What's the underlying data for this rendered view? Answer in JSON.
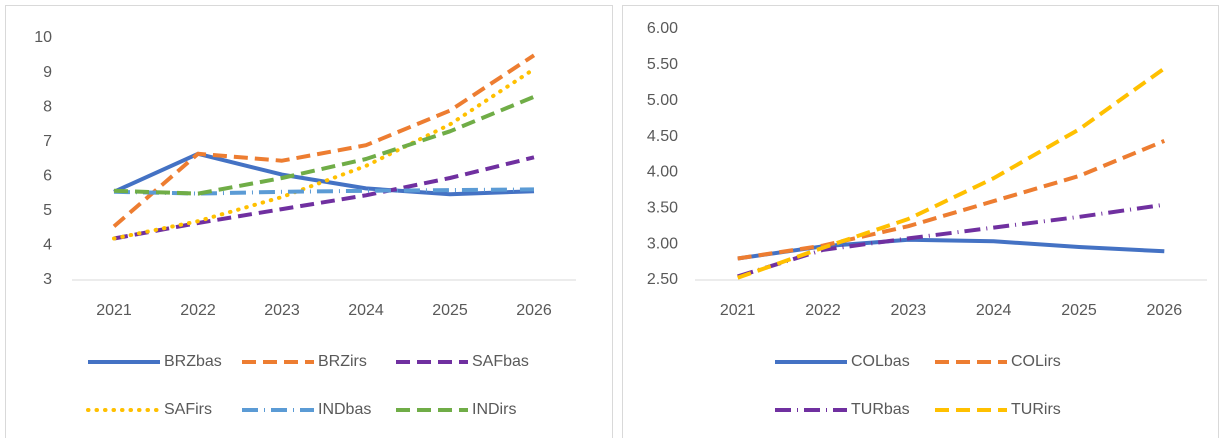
{
  "chart_data": [
    {
      "type": "line",
      "categories": [
        "2021",
        "2022",
        "2023",
        "2024",
        "2025",
        "2026"
      ],
      "ylim": [
        3,
        10
      ],
      "yticks": [
        3,
        4,
        5,
        6,
        7,
        8,
        9,
        10
      ],
      "legend": "bottom",
      "series": [
        {
          "name": "BRZbas",
          "color": "#4472c4",
          "dash": "solid",
          "values": [
            5.55,
            6.65,
            6.05,
            5.65,
            5.48,
            5.57
          ]
        },
        {
          "name": "BRZirs",
          "color": "#ed7d31",
          "dash": "dash",
          "values": [
            4.55,
            6.65,
            6.45,
            6.9,
            7.9,
            9.5
          ]
        },
        {
          "name": "SAFbas",
          "color": "#7030a0",
          "dash": "dash",
          "values": [
            4.2,
            4.65,
            5.05,
            5.45,
            5.95,
            6.55
          ]
        },
        {
          "name": "SAFirs",
          "color": "#ffc000",
          "dash": "dot",
          "values": [
            4.2,
            4.7,
            5.4,
            6.3,
            7.5,
            9.1
          ]
        },
        {
          "name": "INDbas",
          "color": "#5b9bd5",
          "dash": "dashdot",
          "values": [
            5.55,
            5.5,
            5.55,
            5.58,
            5.6,
            5.62
          ]
        },
        {
          "name": "INDirs",
          "color": "#70ad47",
          "dash": "dash",
          "values": [
            5.58,
            5.5,
            5.95,
            6.5,
            7.3,
            8.3
          ]
        }
      ]
    },
    {
      "type": "line",
      "categories": [
        "2021",
        "2022",
        "2023",
        "2024",
        "2025",
        "2026"
      ],
      "ylim": [
        2.5,
        6
      ],
      "yticks": [
        {
          "value": 2.5,
          "label": "2.50"
        },
        {
          "value": 3,
          "label": "3.00"
        },
        {
          "value": 3.5,
          "label": "3.50"
        },
        {
          "value": 4,
          "label": "4.00"
        },
        {
          "value": 4.5,
          "label": "4.50"
        },
        {
          "value": 5,
          "label": "5.00"
        },
        {
          "value": 5.5,
          "label": "5.50"
        },
        {
          "value": 6,
          "label": "6.00"
        }
      ],
      "legend": "bottom",
      "series": [
        {
          "name": "COLbas",
          "color": "#4472c4",
          "dash": "solid",
          "values": [
            2.8,
            2.97,
            3.06,
            3.04,
            2.96,
            2.9
          ]
        },
        {
          "name": "COLirs",
          "color": "#ed7d31",
          "dash": "dash",
          "values": [
            2.8,
            2.98,
            3.25,
            3.6,
            3.95,
            4.44
          ]
        },
        {
          "name": "TURbas",
          "color": "#7030a0",
          "dash": "dashdot",
          "values": [
            2.55,
            2.92,
            3.08,
            3.23,
            3.38,
            3.55
          ]
        },
        {
          "name": "TURirs",
          "color": "#ffc000",
          "dash": "dash",
          "values": [
            2.53,
            2.95,
            3.35,
            3.92,
            4.6,
            5.45
          ]
        }
      ]
    }
  ]
}
